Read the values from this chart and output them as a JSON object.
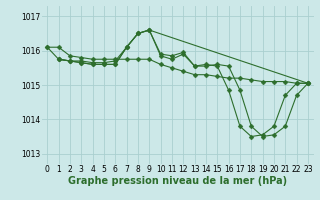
{
  "background_color": "#cce8e8",
  "grid_color": "#aacfcf",
  "line_color": "#2d6e2d",
  "marker_color": "#2d6e2d",
  "xlabel": "Graphe pression niveau de la mer (hPa)",
  "xlabel_fontsize": 7,
  "ylim": [
    1012.7,
    1017.3
  ],
  "xlim": [
    -0.5,
    23.5
  ],
  "yticks": [
    1013,
    1014,
    1015,
    1016,
    1017
  ],
  "xticks": [
    0,
    1,
    2,
    3,
    4,
    5,
    6,
    7,
    8,
    9,
    10,
    11,
    12,
    13,
    14,
    15,
    16,
    17,
    18,
    19,
    20,
    21,
    22,
    23
  ],
  "series": [
    {
      "x": [
        0,
        1,
        2,
        3,
        4,
        5,
        6,
        7,
        8,
        9,
        10,
        11,
        12,
        13,
        14,
        15,
        16,
        17,
        18,
        19,
        20,
        21,
        22,
        23
      ],
      "y": [
        1016.1,
        1016.1,
        1015.85,
        1015.8,
        1015.75,
        1015.75,
        1015.75,
        1015.75,
        1015.75,
        1015.75,
        1015.6,
        1015.5,
        1015.4,
        1015.3,
        1015.3,
        1015.25,
        1015.2,
        1015.2,
        1015.15,
        1015.1,
        1015.1,
        1015.1,
        1015.05,
        1015.05
      ]
    },
    {
      "x": [
        0,
        1,
        2,
        3,
        4,
        5,
        6,
        7,
        8,
        9,
        10,
        11,
        12,
        13,
        14,
        15,
        16,
        17,
        18,
        19,
        20,
        21,
        22,
        23
      ],
      "y": [
        1016.1,
        1015.75,
        1015.7,
        1015.7,
        1015.65,
        1015.65,
        1015.7,
        1016.1,
        1016.5,
        1016.6,
        1015.9,
        1015.85,
        1015.95,
        1015.55,
        1015.55,
        1015.6,
        1015.55,
        1014.85,
        1013.8,
        1013.5,
        1013.55,
        1013.8,
        1014.7,
        1015.05
      ]
    },
    {
      "x": [
        1,
        2,
        3,
        4,
        5,
        6,
        7,
        8,
        9,
        10,
        11,
        12,
        13,
        14,
        15,
        16,
        17,
        18,
        19,
        20,
        21,
        22,
        23
      ],
      "y": [
        1015.75,
        1015.7,
        1015.65,
        1015.6,
        1015.6,
        1015.6,
        1016.1,
        1016.5,
        1016.6,
        1015.85,
        1015.75,
        1015.9,
        1015.55,
        1015.6,
        1015.55,
        1014.85,
        1013.8,
        1013.5,
        1013.55,
        1013.8,
        1014.7,
        1015.05,
        1015.05
      ]
    },
    {
      "x": [
        1,
        2,
        3,
        4,
        5,
        6,
        7,
        8,
        9,
        23
      ],
      "y": [
        1015.75,
        1015.7,
        1015.65,
        1015.6,
        1015.6,
        1015.6,
        1016.1,
        1016.5,
        1016.6,
        1015.05
      ]
    }
  ],
  "tick_fontsize": 5.5,
  "marker_size": 2.5,
  "line_width": 0.8
}
